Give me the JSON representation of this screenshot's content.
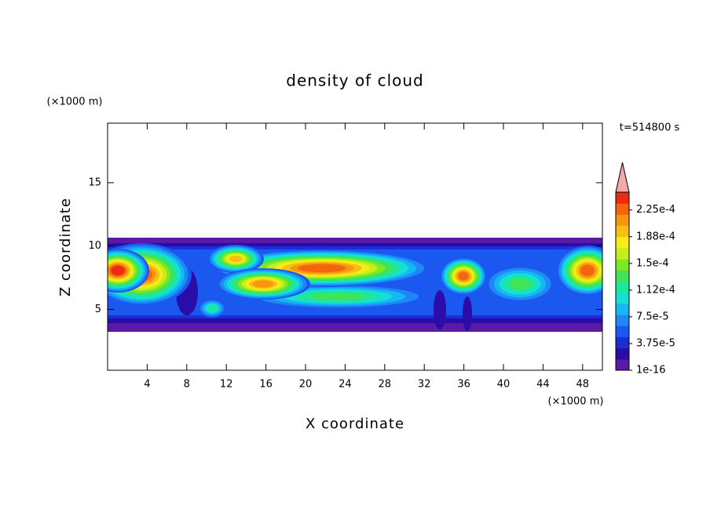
{
  "chart_data": {
    "type": "contour",
    "title": "density of cloud",
    "x_label": "X coordinate",
    "y_label": "Z coordinate",
    "x_unit": "(×1000 m)",
    "y_unit": "(×1000 m)",
    "time_label": "t=514800 s",
    "xlim": [
      0,
      50
    ],
    "xticks": [
      4,
      8,
      12,
      16,
      20,
      24,
      28,
      32,
      36,
      40,
      44,
      48
    ],
    "ylim": [
      0.2,
      19.7
    ],
    "yticks": [
      5,
      10,
      15
    ],
    "colorbar": {
      "lim": [
        1e-16,
        0.00025
      ],
      "ticks": [
        {
          "value": 1e-16,
          "label": "1e-16"
        },
        {
          "value": 3.75e-05,
          "label": "3.75e-5"
        },
        {
          "value": 7.5e-05,
          "label": "7.5e-5"
        },
        {
          "value": 0.0001125,
          "label": "1.12e-4"
        },
        {
          "value": 0.00015,
          "label": "1.5e-4"
        },
        {
          "value": 0.0001875,
          "label": "1.88e-4"
        },
        {
          "value": 0.000225,
          "label": "2.25e-4"
        }
      ],
      "colors": [
        "#5a1aa5",
        "#2a0ca8",
        "#1b2ed4",
        "#1a58f0",
        "#1f88f6",
        "#14b8f2",
        "#16e0d6",
        "#1de896",
        "#40e35a",
        "#80e822",
        "#c6ef1a",
        "#f3ee1a",
        "#f8c012",
        "#f8960f",
        "#f5640e",
        "#ee2a12"
      ],
      "over_color": "#f4a8a8"
    }
  }
}
